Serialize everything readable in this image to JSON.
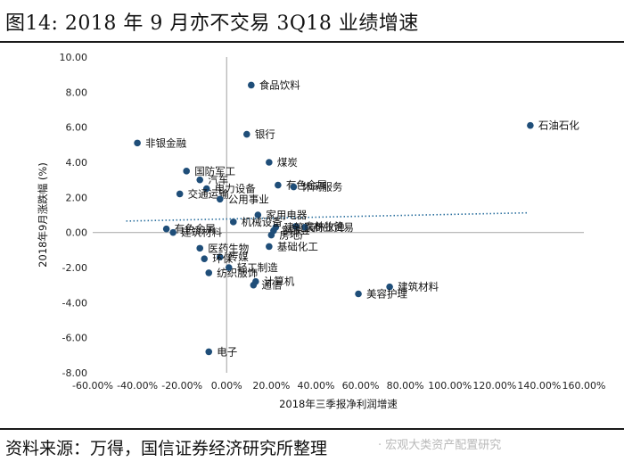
{
  "title": "图14: 2018 年 9 月亦不交易 3Q18 业绩增速",
  "source": "资料来源：万得，国信证券经济研究所整理",
  "watermark": "· 宏观大类资产配置研究",
  "colors": {
    "point": "#1f4e79",
    "trend": "#2a6f9e",
    "axis": "#b0b0b0",
    "grid": "#d0d0d0"
  },
  "chart_data": {
    "type": "scatter",
    "title": "",
    "xlabel": "2018年三季报净利润增速",
    "ylabel": "2018年9月涨跌幅 (%)",
    "xlim": [
      -0.6,
      1.6
    ],
    "ylim": [
      -8,
      10
    ],
    "x_ticks": [
      -0.6,
      -0.4,
      -0.2,
      0,
      0.2,
      0.4,
      0.6,
      0.8,
      1.0,
      1.2,
      1.4,
      1.6
    ],
    "x_tick_labels": [
      "-60.00%",
      "-40.00%",
      "-20.00%",
      "0.00%",
      "20.00%",
      "40.00%",
      "60.00%",
      "80.00%",
      "100.00%",
      "120.00%",
      "140.00%",
      "160.00%"
    ],
    "y_ticks": [
      -8,
      -6,
      -4,
      -2,
      0,
      2,
      4,
      6,
      8,
      10
    ],
    "y_tick_labels": [
      "-8.00",
      "-6.00",
      "-4.00",
      "-2.00",
      "0.00",
      "2.00",
      "4.00",
      "6.00",
      "8.00",
      "10.00"
    ],
    "trendline": {
      "x": [
        -0.45,
        1.35
      ],
      "y": [
        0.65,
        1.12
      ],
      "style": "dotted"
    },
    "points": [
      {
        "name": "食品饮料",
        "x": 0.11,
        "y": 8.4
      },
      {
        "name": "非银金融",
        "x": -0.4,
        "y": 5.1
      },
      {
        "name": "银行",
        "x": 0.09,
        "y": 5.6
      },
      {
        "name": "石油石化",
        "x": 1.36,
        "y": 6.1
      },
      {
        "name": "煤炭",
        "x": 0.19,
        "y": 4.0
      },
      {
        "name": "国防军工",
        "x": -0.18,
        "y": 3.5
      },
      {
        "name": "汽车",
        "x": -0.12,
        "y": 3.0
      },
      {
        "name": "电力设备",
        "x": -0.09,
        "y": 2.5
      },
      {
        "name": "有色金属",
        "x": 0.23,
        "y": 2.7
      },
      {
        "name": "休闲服务",
        "x": 0.3,
        "y": 2.6
      },
      {
        "name": "交通运输",
        "x": -0.21,
        "y": 2.2
      },
      {
        "name": "公用事业",
        "x": -0.03,
        "y": 1.9
      },
      {
        "name": "家用电器",
        "x": 0.14,
        "y": 1.0
      },
      {
        "name": "农林牧渔",
        "x": 0.31,
        "y": 0.35
      },
      {
        "name": "商业贸易",
        "x": 0.35,
        "y": 0.3
      },
      {
        "name": "建筑装饰",
        "x": 0.22,
        "y": 0.3
      },
      {
        "name": "钢铁",
        "x": 0.21,
        "y": 0.1
      },
      {
        "name": "房地产",
        "x": 0.2,
        "y": -0.15
      },
      {
        "name": "机械设备",
        "x": 0.03,
        "y": 0.6
      },
      {
        "name": "有色金属",
        "x": -0.27,
        "y": 0.2
      },
      {
        "name": "建筑材料",
        "x": -0.24,
        "y": 0.0
      },
      {
        "name": "基础化工",
        "x": 0.19,
        "y": -0.8
      },
      {
        "name": "医药生物",
        "x": -0.12,
        "y": -0.9
      },
      {
        "name": "传媒",
        "x": -0.03,
        "y": -1.4
      },
      {
        "name": "纺织服饰",
        "x": -0.08,
        "y": -2.3
      },
      {
        "name": "环保",
        "x": -0.1,
        "y": -1.5
      },
      {
        "name": "轻工制造",
        "x": 0.01,
        "y": -2.0
      },
      {
        "name": "计算机",
        "x": 0.13,
        "y": -2.8
      },
      {
        "name": "通信",
        "x": 0.12,
        "y": -3.0
      },
      {
        "name": "建筑材料",
        "x": 0.73,
        "y": -3.1
      },
      {
        "name": "美容护理",
        "x": 0.59,
        "y": -3.5
      },
      {
        "name": "电子",
        "x": -0.08,
        "y": -6.8
      }
    ]
  }
}
